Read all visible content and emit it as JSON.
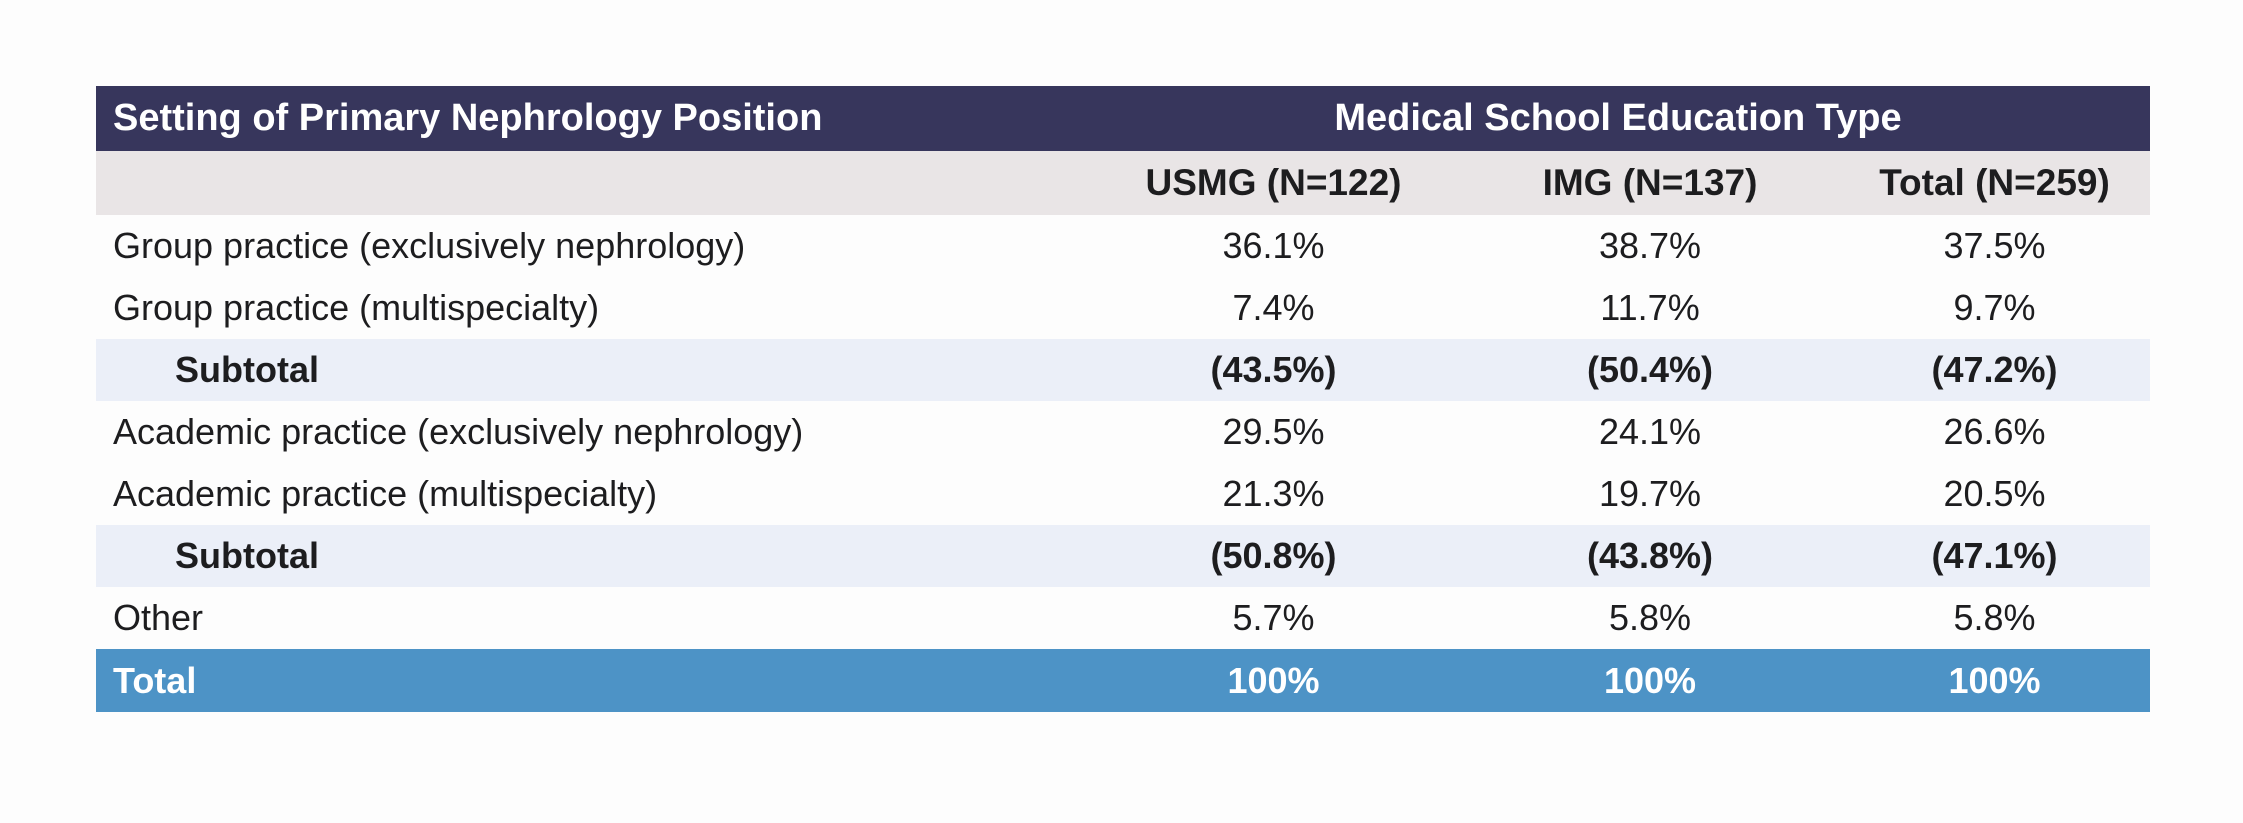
{
  "table": {
    "row_header_title": "Setting of Primary Nephrology Position",
    "group_header": "Medical School Education Type",
    "columns": [
      "USMG (N=122)",
      "IMG (N=137)",
      "Total (N=259)"
    ],
    "rows": [
      {
        "label": "Group practice (exclusively nephrology)",
        "values": [
          "36.1%",
          "38.7%",
          "37.5%"
        ],
        "kind": "data"
      },
      {
        "label": "Group practice (multispecialty)",
        "values": [
          "7.4%",
          "11.7%",
          "9.7%"
        ],
        "kind": "data"
      },
      {
        "label": "Subtotal",
        "values": [
          "(43.5%)",
          "(50.4%)",
          "(47.2%)"
        ],
        "kind": "subtotal"
      },
      {
        "label": "Academic practice (exclusively nephrology)",
        "values": [
          "29.5%",
          "24.1%",
          "26.6%"
        ],
        "kind": "data"
      },
      {
        "label": "Academic practice (multispecialty)",
        "values": [
          "21.3%",
          "19.7%",
          "20.5%"
        ],
        "kind": "data"
      },
      {
        "label": "Subtotal",
        "values": [
          "(50.8%)",
          "(43.8%)",
          "(47.1%)"
        ],
        "kind": "subtotal"
      },
      {
        "label": "Other",
        "values": [
          "5.7%",
          "5.8%",
          "5.8%"
        ],
        "kind": "data"
      },
      {
        "label": "Total",
        "values": [
          "100%",
          "100%",
          "100%"
        ],
        "kind": "total"
      }
    ]
  },
  "colors": {
    "title_bar": "#37365c",
    "column_header": "#e9e5e6",
    "subtotal_row": "#ebeff8",
    "total_row": "#4d93c6"
  }
}
